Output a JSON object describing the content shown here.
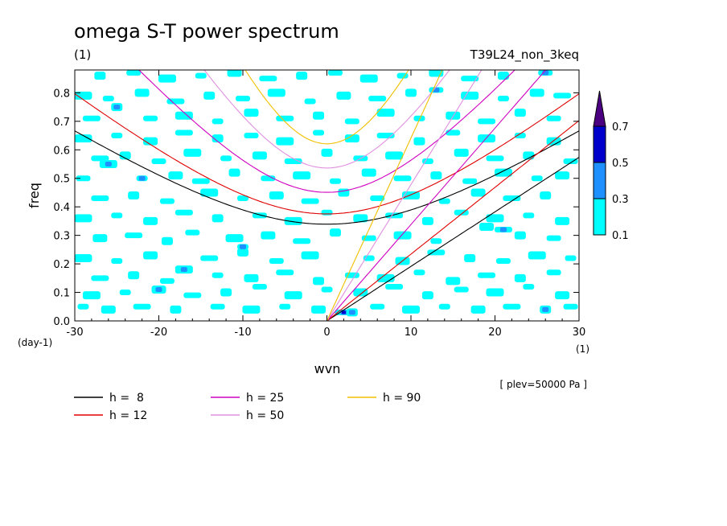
{
  "chart_data": {
    "type": "heatmap",
    "title": "omega S-T power spectrum",
    "subtitle_left": "(1)",
    "subtitle_right": "T39L24_non_3keq",
    "xlabel": "wvn",
    "ylabel": "freq",
    "x_unit": "(1)",
    "y_unit": "(day-1)",
    "annotation": "[ plev=50000 Pa ]",
    "xlim": [
      -30,
      30
    ],
    "ylim": [
      0,
      0.88
    ],
    "x_ticks": [
      -30,
      -20,
      -10,
      0,
      10,
      20,
      30
    ],
    "y_ticks": [
      0.0,
      0.1,
      0.2,
      0.3,
      0.4,
      0.5,
      0.6,
      0.7,
      0.8
    ],
    "x_tick_labels": [
      "-30",
      "-20",
      "-10",
      "0",
      "10",
      "20",
      "30"
    ],
    "y_tick_labels": [
      "0.0",
      "0.1",
      "0.2",
      "0.3",
      "0.4",
      "0.5",
      "0.6",
      "0.7",
      "0.8"
    ],
    "colorbar": {
      "levels": [
        0.1,
        0.3,
        0.5,
        0.7
      ],
      "labels": [
        "0.1",
        "0.3",
        "0.5",
        "0.7"
      ],
      "colors": [
        "#00ffff",
        "#1e90ff",
        "#0000cd",
        "#4b0082"
      ]
    },
    "series": [
      {
        "name": "h =  8",
        "h": 8,
        "color": "#000000"
      },
      {
        "name": "h = 12",
        "h": 12,
        "color": "#e00000"
      },
      {
        "name": "h = 25",
        "h": 25,
        "color": "#d000c0"
      },
      {
        "name": "h = 50",
        "h": 50,
        "color": "#e090e0"
      },
      {
        "name": "h = 90",
        "h": 90,
        "color": "#f0c000"
      }
    ],
    "cells": [
      [
        -29,
        0.05,
        1
      ],
      [
        -26,
        0.04,
        1
      ],
      [
        -22,
        0.05,
        1
      ],
      [
        -18,
        0.04,
        1
      ],
      [
        -13,
        0.05,
        1
      ],
      [
        -9,
        0.04,
        1
      ],
      [
        -5,
        0.05,
        1
      ],
      [
        -1,
        0.04,
        1
      ],
      [
        2,
        0.03,
        3
      ],
      [
        3,
        0.03,
        2
      ],
      [
        6,
        0.05,
        1
      ],
      [
        10,
        0.04,
        1
      ],
      [
        14,
        0.05,
        1
      ],
      [
        18,
        0.04,
        1
      ],
      [
        22,
        0.05,
        1
      ],
      [
        26,
        0.04,
        2
      ],
      [
        29,
        0.05,
        1
      ],
      [
        -28,
        0.09,
        1
      ],
      [
        -24,
        0.1,
        1
      ],
      [
        -20,
        0.11,
        2
      ],
      [
        -16,
        0.09,
        1
      ],
      [
        -12,
        0.1,
        1
      ],
      [
        -8,
        0.12,
        1
      ],
      [
        -4,
        0.09,
        1
      ],
      [
        0,
        0.11,
        1
      ],
      [
        4,
        0.1,
        1
      ],
      [
        8,
        0.12,
        1
      ],
      [
        12,
        0.09,
        1
      ],
      [
        16,
        0.11,
        1
      ],
      [
        20,
        0.1,
        1
      ],
      [
        24,
        0.12,
        1
      ],
      [
        28,
        0.09,
        1
      ],
      [
        -27,
        0.15,
        1
      ],
      [
        -23,
        0.16,
        1
      ],
      [
        -19,
        0.14,
        1
      ],
      [
        -17,
        0.18,
        2
      ],
      [
        -13,
        0.16,
        1
      ],
      [
        -9,
        0.15,
        1
      ],
      [
        -5,
        0.17,
        1
      ],
      [
        -1,
        0.14,
        1
      ],
      [
        3,
        0.16,
        1
      ],
      [
        7,
        0.15,
        1
      ],
      [
        11,
        0.17,
        1
      ],
      [
        15,
        0.14,
        1
      ],
      [
        19,
        0.16,
        1
      ],
      [
        23,
        0.15,
        1
      ],
      [
        27,
        0.17,
        1
      ],
      [
        -29,
        0.22,
        1
      ],
      [
        -25,
        0.21,
        1
      ],
      [
        -21,
        0.23,
        1
      ],
      [
        -14,
        0.22,
        1
      ],
      [
        -10,
        0.24,
        1
      ],
      [
        -6,
        0.21,
        1
      ],
      [
        -2,
        0.23,
        1
      ],
      [
        5,
        0.22,
        1
      ],
      [
        9,
        0.21,
        1
      ],
      [
        13,
        0.24,
        1
      ],
      [
        17,
        0.22,
        1
      ],
      [
        21,
        0.21,
        1
      ],
      [
        25,
        0.23,
        1
      ],
      [
        29,
        0.22,
        1
      ],
      [
        -27,
        0.29,
        1
      ],
      [
        -23,
        0.3,
        1
      ],
      [
        -19,
        0.28,
        1
      ],
      [
        -16,
        0.31,
        1
      ],
      [
        -11,
        0.29,
        1
      ],
      [
        -10,
        0.26,
        2
      ],
      [
        -7,
        0.3,
        1
      ],
      [
        -3,
        0.28,
        1
      ],
      [
        1,
        0.31,
        1
      ],
      [
        5,
        0.29,
        1
      ],
      [
        9,
        0.3,
        1
      ],
      [
        13,
        0.28,
        1
      ],
      [
        19,
        0.33,
        1
      ],
      [
        21,
        0.32,
        2
      ],
      [
        23,
        0.3,
        1
      ],
      [
        27,
        0.29,
        1
      ],
      [
        -29,
        0.36,
        1
      ],
      [
        -25,
        0.37,
        1
      ],
      [
        -21,
        0.35,
        1
      ],
      [
        -17,
        0.38,
        1
      ],
      [
        -13,
        0.36,
        1
      ],
      [
        -8,
        0.37,
        1
      ],
      [
        -4,
        0.35,
        1
      ],
      [
        0,
        0.38,
        1
      ],
      [
        4,
        0.36,
        1
      ],
      [
        8,
        0.37,
        1
      ],
      [
        12,
        0.35,
        1
      ],
      [
        16,
        0.38,
        1
      ],
      [
        20,
        0.36,
        1
      ],
      [
        24,
        0.37,
        1
      ],
      [
        28,
        0.35,
        1
      ],
      [
        -27,
        0.43,
        1
      ],
      [
        -23,
        0.44,
        1
      ],
      [
        -19,
        0.42,
        1
      ],
      [
        -14,
        0.45,
        1
      ],
      [
        -10,
        0.43,
        1
      ],
      [
        -6,
        0.44,
        1
      ],
      [
        -2,
        0.42,
        1
      ],
      [
        2,
        0.45,
        1
      ],
      [
        6,
        0.43,
        1
      ],
      [
        10,
        0.44,
        1
      ],
      [
        14,
        0.42,
        1
      ],
      [
        18,
        0.45,
        1
      ],
      [
        22,
        0.43,
        1
      ],
      [
        26,
        0.44,
        1
      ],
      [
        -29,
        0.5,
        1
      ],
      [
        -26,
        0.55,
        2
      ],
      [
        -22,
        0.5,
        2
      ],
      [
        -18,
        0.51,
        1
      ],
      [
        -15,
        0.49,
        1
      ],
      [
        -11,
        0.52,
        1
      ],
      [
        -7,
        0.5,
        1
      ],
      [
        -3,
        0.51,
        1
      ],
      [
        1,
        0.49,
        1
      ],
      [
        5,
        0.52,
        1
      ],
      [
        9,
        0.5,
        1
      ],
      [
        13,
        0.51,
        1
      ],
      [
        17,
        0.49,
        1
      ],
      [
        21,
        0.52,
        1
      ],
      [
        25,
        0.5,
        1
      ],
      [
        28,
        0.51,
        1
      ],
      [
        -27,
        0.57,
        1
      ],
      [
        -24,
        0.58,
        1
      ],
      [
        -20,
        0.56,
        1
      ],
      [
        -16,
        0.59,
        1
      ],
      [
        -12,
        0.57,
        1
      ],
      [
        -8,
        0.58,
        1
      ],
      [
        -4,
        0.56,
        1
      ],
      [
        0,
        0.59,
        1
      ],
      [
        4,
        0.57,
        1
      ],
      [
        8,
        0.58,
        1
      ],
      [
        12,
        0.56,
        1
      ],
      [
        16,
        0.59,
        1
      ],
      [
        20,
        0.57,
        1
      ],
      [
        24,
        0.58,
        1
      ],
      [
        29,
        0.56,
        1
      ],
      [
        -29,
        0.64,
        1
      ],
      [
        -25,
        0.65,
        1
      ],
      [
        -21,
        0.63,
        1
      ],
      [
        -17,
        0.66,
        1
      ],
      [
        -13,
        0.64,
        1
      ],
      [
        -9,
        0.65,
        1
      ],
      [
        -5,
        0.63,
        1
      ],
      [
        -1,
        0.66,
        1
      ],
      [
        3,
        0.64,
        1
      ],
      [
        7,
        0.65,
        1
      ],
      [
        11,
        0.63,
        1
      ],
      [
        15,
        0.66,
        1
      ],
      [
        19,
        0.64,
        1
      ],
      [
        23,
        0.65,
        1
      ],
      [
        27,
        0.63,
        1
      ],
      [
        -28,
        0.71,
        1
      ],
      [
        -25,
        0.75,
        2
      ],
      [
        -21,
        0.71,
        1
      ],
      [
        -17,
        0.72,
        1
      ],
      [
        -13,
        0.7,
        1
      ],
      [
        -9,
        0.73,
        1
      ],
      [
        -5,
        0.71,
        1
      ],
      [
        -1,
        0.72,
        1
      ],
      [
        3,
        0.7,
        1
      ],
      [
        7,
        0.73,
        1
      ],
      [
        11,
        0.71,
        1
      ],
      [
        15,
        0.72,
        1
      ],
      [
        19,
        0.7,
        1
      ],
      [
        23,
        0.73,
        1
      ],
      [
        27,
        0.71,
        1
      ],
      [
        -29,
        0.79,
        1
      ],
      [
        -26,
        0.78,
        1
      ],
      [
        -22,
        0.8,
        1
      ],
      [
        -18,
        0.77,
        1
      ],
      [
        -14,
        0.79,
        1
      ],
      [
        -10,
        0.78,
        1
      ],
      [
        -6,
        0.8,
        1
      ],
      [
        -2,
        0.77,
        1
      ],
      [
        2,
        0.79,
        1
      ],
      [
        6,
        0.78,
        1
      ],
      [
        10,
        0.8,
        1
      ],
      [
        13,
        0.81,
        2
      ],
      [
        17,
        0.79,
        1
      ],
      [
        21,
        0.78,
        1
      ],
      [
        25,
        0.8,
        1
      ],
      [
        28,
        0.79,
        1
      ],
      [
        -27,
        0.86,
        1
      ],
      [
        -23,
        0.87,
        1
      ],
      [
        -19,
        0.85,
        1
      ],
      [
        -15,
        0.86,
        1
      ],
      [
        -11,
        0.87,
        1
      ],
      [
        -7,
        0.85,
        1
      ],
      [
        -3,
        0.86,
        1
      ],
      [
        1,
        0.87,
        1
      ],
      [
        5,
        0.85,
        1
      ],
      [
        9,
        0.86,
        1
      ],
      [
        13,
        0.87,
        1
      ],
      [
        17,
        0.85,
        1
      ],
      [
        21,
        0.86,
        1
      ],
      [
        26,
        0.87,
        2
      ]
    ]
  }
}
